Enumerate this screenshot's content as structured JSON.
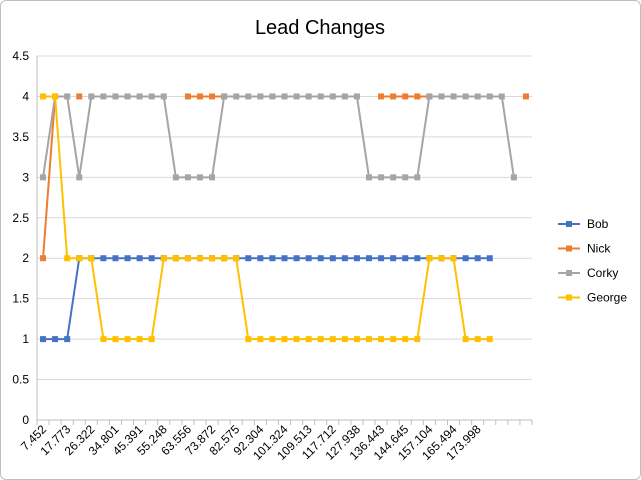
{
  "chart_data": {
    "type": "line",
    "title": "Lead Changes",
    "xlabel": "",
    "ylabel": "",
    "ylim": [
      0,
      4.5
    ],
    "y_ticks": [
      0,
      0.5,
      1,
      1.5,
      2,
      2.5,
      3,
      3.5,
      4,
      4.5
    ],
    "grid": "horizontal",
    "legend_position": "right",
    "x_tick_labels": [
      "7.452",
      "17.773",
      "26.322",
      "34.801",
      "45.391",
      "55.248",
      "63.556",
      "73.872",
      "82.575",
      "92.304",
      "101.324",
      "109.513",
      "117.712",
      "127.938",
      "136.443",
      "144.645",
      "157.104",
      "165.494",
      "173.998"
    ],
    "x_label_every": 2,
    "series": [
      {
        "name": "Bob",
        "color": "#4472C4",
        "values": [
          1,
          1,
          1,
          2,
          2,
          2,
          2,
          2,
          2,
          2,
          2,
          2,
          2,
          2,
          2,
          2,
          2,
          2,
          2,
          2,
          2,
          2,
          2,
          2,
          2,
          2,
          2,
          2,
          2,
          2,
          2,
          2,
          2,
          2,
          2,
          2,
          2,
          2
        ]
      },
      {
        "name": "Nick",
        "color": "#ED7D31",
        "values": [
          2,
          4,
          null,
          4,
          null,
          null,
          null,
          null,
          null,
          null,
          null,
          null,
          4,
          4,
          4,
          4,
          null,
          null,
          null,
          null,
          null,
          null,
          null,
          null,
          null,
          null,
          null,
          null,
          4,
          4,
          4,
          4,
          4,
          null,
          null,
          null,
          null,
          null,
          null,
          null,
          4
        ]
      },
      {
        "name": "Corky",
        "color": "#A5A5A5",
        "values": [
          3,
          4,
          4,
          3,
          4,
          4,
          4,
          4,
          4,
          4,
          4,
          3,
          3,
          3,
          3,
          4,
          4,
          4,
          4,
          4,
          4,
          4,
          4,
          4,
          4,
          4,
          4,
          3,
          3,
          3,
          3,
          3,
          4,
          4,
          4,
          4,
          4,
          4,
          4,
          3
        ]
      },
      {
        "name": "George",
        "color": "#FFC000",
        "values": [
          4,
          4,
          2,
          2,
          2,
          1,
          1,
          1,
          1,
          1,
          2,
          2,
          2,
          2,
          2,
          2,
          2,
          1,
          1,
          1,
          1,
          1,
          1,
          1,
          1,
          1,
          1,
          1,
          1,
          1,
          1,
          1,
          2,
          2,
          2,
          1,
          1,
          1
        ]
      }
    ]
  }
}
